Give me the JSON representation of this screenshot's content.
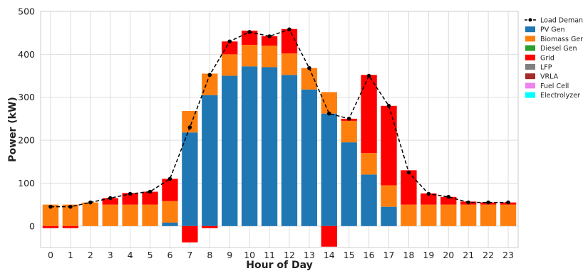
{
  "chart_data": {
    "type": "bar",
    "stacked": true,
    "title": "",
    "xlabel": "Hour of Day",
    "ylabel": "Power (kW)",
    "ylim": [
      -50,
      500
    ],
    "yticks": [
      0,
      100,
      200,
      300,
      400,
      500
    ],
    "grid": true,
    "legend_position": "right",
    "categories": [
      "0",
      "1",
      "2",
      "3",
      "4",
      "5",
      "6",
      "7",
      "8",
      "9",
      "10",
      "11",
      "12",
      "13",
      "14",
      "15",
      "16",
      "17",
      "18",
      "19",
      "20",
      "21",
      "22",
      "23"
    ],
    "series": [
      {
        "name": "PV Gen",
        "color": "#1f77b4",
        "values": [
          0,
          0,
          0,
          0,
          0,
          0,
          8,
          218,
          305,
          350,
          372,
          370,
          352,
          318,
          262,
          195,
          120,
          45,
          0,
          0,
          0,
          0,
          0,
          0
        ]
      },
      {
        "name": "Biomass Gen",
        "color": "#ff7f0e",
        "values": [
          50,
          50,
          55,
          50,
          50,
          50,
          50,
          50,
          50,
          50,
          50,
          50,
          50,
          50,
          50,
          50,
          50,
          50,
          50,
          50,
          50,
          50,
          50,
          50
        ]
      },
      {
        "name": "Diesel Gen",
        "color": "#2ca02c",
        "values": [
          0,
          0,
          0,
          0,
          0,
          0,
          0,
          0,
          0,
          0,
          0,
          0,
          0,
          0,
          0,
          0,
          0,
          0,
          0,
          0,
          0,
          0,
          0,
          0
        ]
      },
      {
        "name": "Grid",
        "color": "#ff0000",
        "values": [
          -5,
          -5,
          0,
          15,
          27,
          30,
          52,
          -38,
          -5,
          30,
          33,
          22,
          57,
          0,
          -48,
          5,
          182,
          185,
          80,
          26,
          18,
          7,
          5,
          5
        ]
      },
      {
        "name": "LFP",
        "color": "#7f7f7f",
        "values": [
          0,
          0,
          0,
          0,
          0,
          0,
          0,
          0,
          0,
          0,
          0,
          0,
          0,
          0,
          0,
          0,
          0,
          0,
          0,
          0,
          0,
          0,
          0,
          0
        ]
      },
      {
        "name": "VRLA",
        "color": "#a52a2a",
        "values": [
          0,
          0,
          0,
          0,
          0,
          0,
          0,
          0,
          0,
          0,
          0,
          0,
          0,
          0,
          0,
          0,
          0,
          0,
          0,
          0,
          0,
          0,
          0,
          0
        ]
      },
      {
        "name": "Fuel Cell",
        "color": "#ee82ee",
        "values": [
          0,
          0,
          0,
          0,
          0,
          0,
          0,
          0,
          0,
          0,
          0,
          0,
          0,
          0,
          0,
          0,
          0,
          0,
          0,
          0,
          0,
          0,
          0,
          0
        ]
      },
      {
        "name": "Electrolyzer",
        "color": "#00ffff",
        "values": [
          0,
          0,
          0,
          0,
          0,
          0,
          0,
          0,
          0,
          0,
          0,
          0,
          0,
          0,
          0,
          0,
          0,
          0,
          0,
          0,
          0,
          0,
          0,
          0
        ]
      }
    ],
    "load_demand": {
      "name": "Load Demand",
      "color": "#000000",
      "values": [
        45,
        45,
        55,
        65,
        75,
        80,
        110,
        230,
        352,
        430,
        452,
        442,
        458,
        368,
        262,
        250,
        350,
        280,
        125,
        75,
        68,
        55,
        55,
        55
      ]
    }
  }
}
